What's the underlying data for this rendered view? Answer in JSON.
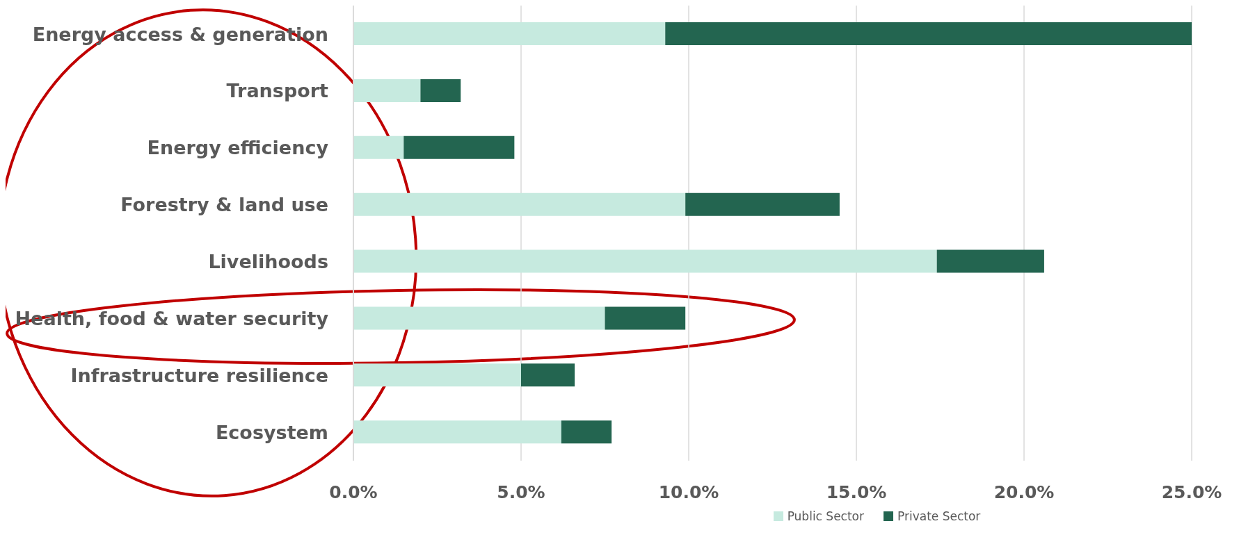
{
  "chart_data": {
    "type": "bar",
    "orientation": "horizontal",
    "stacked": true,
    "categories": [
      "Energy access & generation",
      "Transport",
      "Energy efficiency",
      "Forestry & land use",
      "Livelihoods",
      "Health, food & water security",
      "Infrastructure resilience",
      "Ecosystem"
    ],
    "series": [
      {
        "name": "Public Sector",
        "color": "#c6eadf",
        "values": [
          9.3,
          2.0,
          1.5,
          9.9,
          17.4,
          7.5,
          5.0,
          6.2
        ]
      },
      {
        "name": "Private Sector",
        "color": "#236550",
        "values": [
          15.7,
          1.2,
          3.3,
          4.6,
          3.2,
          2.4,
          1.6,
          1.5
        ]
      }
    ],
    "xlim": [
      0,
      25
    ],
    "xticks": [
      {
        "value": 0,
        "label": "0.0%"
      },
      {
        "value": 5,
        "label": "5.0%"
      },
      {
        "value": 10,
        "label": "10.0%"
      },
      {
        "value": 15,
        "label": "15.0%"
      },
      {
        "value": 20,
        "label": "20.0%"
      },
      {
        "value": 25,
        "label": "25.0%"
      }
    ],
    "grid": "x",
    "legend": "bottom"
  }
}
